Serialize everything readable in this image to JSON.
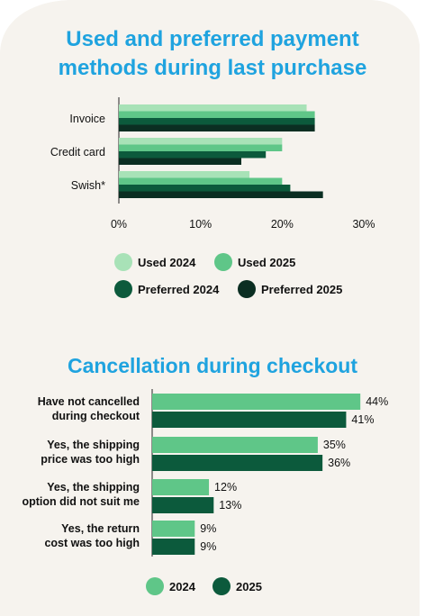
{
  "colors": {
    "bg": "#f6f3ee",
    "title": "#1fa3df",
    "used_2024": "#a8e2b7",
    "used_2025": "#5fc688",
    "preferred_2024": "#0c5a3c",
    "preferred_2025": "#0b2e22",
    "y2024": "#5fc688",
    "y2025": "#0c5a3c"
  },
  "chart_data": [
    {
      "type": "bar",
      "orientation": "horizontal",
      "title": "Used and preferred payment methods during last purchase",
      "categories": [
        "Invoice",
        "Credit card",
        "Swish*"
      ],
      "series": [
        {
          "name": "Used 2024",
          "values": [
            23,
            20,
            16
          ]
        },
        {
          "name": "Used 2025",
          "values": [
            24,
            20,
            20
          ]
        },
        {
          "name": "Preferred 2024",
          "values": [
            24,
            18,
            21
          ]
        },
        {
          "name": "Preferred 2025",
          "values": [
            24,
            15,
            25
          ]
        }
      ],
      "xlim": [
        0,
        30
      ],
      "xticks": [
        "0%",
        "10%",
        "20%",
        "30%"
      ],
      "legend": "bottom"
    },
    {
      "type": "bar",
      "orientation": "horizontal",
      "title": "Cancellation during checkout",
      "categories": [
        [
          "Have not cancelled",
          "during checkout"
        ],
        [
          "Yes, the shipping",
          "price was too high"
        ],
        [
          "Yes, the shipping",
          "option did not suit me"
        ],
        [
          "Yes, the return",
          "cost was too high"
        ]
      ],
      "series": [
        {
          "name": "2024",
          "values": [
            44,
            35,
            12,
            9
          ],
          "labels": [
            "44%",
            "35%",
            "12%",
            "9%"
          ]
        },
        {
          "name": "2025",
          "values": [
            41,
            36,
            13,
            9
          ],
          "labels": [
            "41%",
            "36%",
            "13%",
            "9%"
          ]
        }
      ],
      "xlim": [
        0,
        55
      ],
      "legend": "bottom"
    }
  ]
}
